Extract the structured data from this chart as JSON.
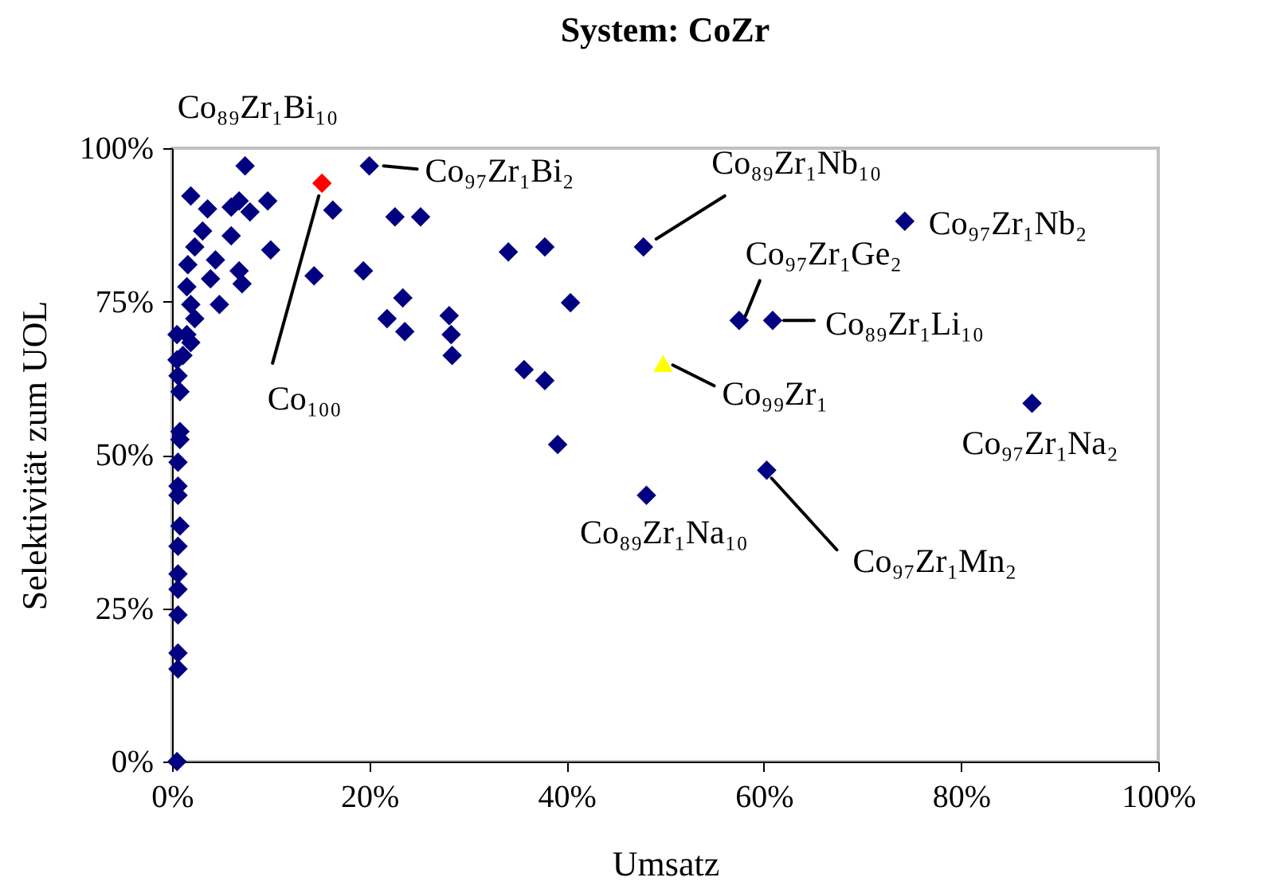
{
  "chart_data": {
    "type": "scatter",
    "title": "System: CoZr",
    "xlabel": "Umsatz",
    "ylabel": "Selektivität zum UOL",
    "xlim": [
      0,
      100
    ],
    "ylim": [
      0,
      100
    ],
    "xticks": [
      {
        "value": 0,
        "label": "0%"
      },
      {
        "value": 20,
        "label": "20%"
      },
      {
        "value": 40,
        "label": "40%"
      },
      {
        "value": 60,
        "label": "60%"
      },
      {
        "value": 80,
        "label": "80%"
      },
      {
        "value": 100,
        "label": "100%"
      }
    ],
    "yticks": [
      {
        "value": 0,
        "label": "0%"
      },
      {
        "value": 25,
        "label": "25%"
      },
      {
        "value": 50,
        "label": "50%"
      },
      {
        "value": 75,
        "label": "75%"
      },
      {
        "value": 100,
        "label": "100%"
      }
    ],
    "grid": false,
    "series": [
      {
        "color": "#000080",
        "marker": "diamond",
        "x": [
          7.4,
          20.0,
          22.6,
          25.2,
          34.1,
          37.8,
          47.8,
          74.3,
          57.5,
          60.9,
          87.2,
          60.3,
          48.1,
          39.1,
          35.7,
          37.8,
          40.4,
          19.4,
          23.4,
          21.8,
          23.6,
          28.1,
          28.3,
          28.4,
          16.3,
          10.0,
          9.7,
          14.4,
          1.9,
          3.6,
          6.8,
          7.9,
          6.0,
          3.1,
          2.3,
          4.4,
          1.6,
          6.8,
          7.1,
          3.9,
          1.5,
          4.8,
          1.9,
          2.3,
          1.5,
          0.5,
          1.9,
          1.1,
          0.5,
          0.6,
          0.8,
          0.8,
          6.0,
          0.8,
          0.6,
          0.6,
          0.6,
          0.8,
          0.6,
          0.6,
          0.6,
          0.6,
          0.6,
          0.6,
          0.5
        ],
        "values": [
          97.1,
          97.1,
          88.8,
          88.8,
          83.1,
          83.9,
          83.9,
          88.1,
          71.9,
          71.9,
          58.4,
          47.5,
          43.4,
          51.7,
          63.9,
          62.1,
          74.8,
          80.0,
          75.6,
          72.2,
          70.1,
          72.7,
          69.6,
          66.2,
          89.9,
          83.4,
          91.4,
          79.2,
          92.2,
          90.1,
          91.4,
          89.6,
          85.7,
          86.5,
          83.9,
          81.8,
          81.0,
          80.0,
          77.9,
          78.7,
          77.4,
          74.5,
          74.5,
          72.2,
          69.6,
          69.6,
          68.3,
          66.2,
          65.5,
          62.9,
          60.3,
          53.8,
          90.4,
          52.5,
          48.8,
          44.9,
          43.4,
          38.4,
          35.1,
          30.6,
          28.1,
          23.9,
          17.7,
          15.1,
          0
        ]
      },
      {
        "color": "#ff0000",
        "marker": "diamond",
        "x": [
          15.2
        ],
        "values": [
          94.3
        ]
      },
      {
        "color": "#ffff00",
        "marker": "triangle",
        "x": [
          49.8
        ],
        "values": [
          64.9
        ]
      }
    ],
    "annotations": [
      {
        "text": "Co₈₉Zr₁Bi₁₀",
        "x": 7.4,
        "y": 97.1
      },
      {
        "text": "Co₉₇Zr₁Bi₂",
        "x": 20.0,
        "y": 97.1
      },
      {
        "text": "Co₈₉Zr₁Nb₁₀",
        "x": 47.8,
        "y": 83.9
      },
      {
        "text": "Co₉₇Zr₁Nb₂",
        "x": 74.3,
        "y": 88.1
      },
      {
        "text": "Co₉₇Zr₁Ge₂",
        "x": 57.5,
        "y": 71.9
      },
      {
        "text": "Co₈₉Zr₁Li₁₀",
        "x": 60.9,
        "y": 71.9
      },
      {
        "text": "Co₁₀₀",
        "x": 15.2,
        "y": 94.3
      },
      {
        "text": "Co₉₉Zr₁",
        "x": 49.8,
        "y": 64.9
      },
      {
        "text": "Co₉₇Zr₁Na₂",
        "x": 87.2,
        "y": 58.4
      },
      {
        "text": "Co₈₉Zr₁Na₁₀",
        "x": 48.1,
        "y": 43.4
      },
      {
        "text": "Co₉₇Zr₁Mn₂",
        "x": 60.3,
        "y": 47.5
      }
    ]
  }
}
